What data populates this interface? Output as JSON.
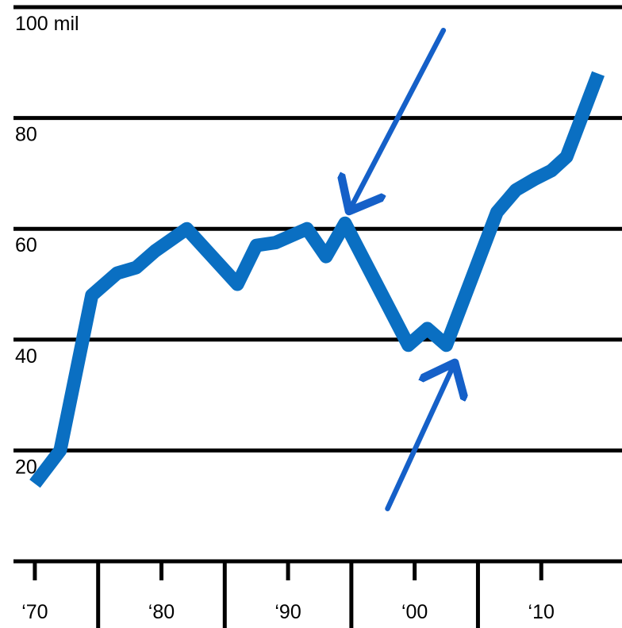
{
  "chart_data": {
    "type": "line",
    "title": "",
    "xlabel": "",
    "ylabel": "",
    "ylim": [
      0,
      100
    ],
    "xlim": [
      1968,
      2015.5
    ],
    "grid": true,
    "y_ticks": [
      {
        "value": 100,
        "label": "100 mil"
      },
      {
        "value": 80,
        "label": "80"
      },
      {
        "value": 60,
        "label": "60"
      },
      {
        "value": 40,
        "label": "40"
      },
      {
        "value": 20,
        "label": "20"
      }
    ],
    "x_ticks": [
      {
        "value": 1970,
        "label": "‘70"
      },
      {
        "value": 1980,
        "label": "‘80"
      },
      {
        "value": 1990,
        "label": "‘90"
      },
      {
        "value": 2000,
        "label": "‘00"
      },
      {
        "value": 2010,
        "label": "‘10"
      }
    ],
    "series": [
      {
        "color": "#0a6fc2",
        "x": [
          1970,
          1972,
          1974.5,
          1976.5,
          1978,
          1979.5,
          1982,
          1986,
          1987.5,
          1989,
          1991.5,
          1993,
          1994.5,
          1999.5,
          2001,
          2002.5,
          2006.5,
          2008,
          2009.5,
          2010.8,
          2012,
          2014.5
        ],
        "values": [
          14,
          20,
          48,
          52,
          53,
          56,
          60,
          50,
          57,
          57.5,
          60,
          55,
          61,
          39,
          42,
          39,
          63,
          67,
          69,
          70.5,
          73,
          88
        ]
      }
    ],
    "annotations": [
      {
        "type": "arrow",
        "color": "#1560c8",
        "direction": "down-left",
        "points_to": {
          "x": 1995,
          "y": 64
        }
      },
      {
        "type": "arrow",
        "color": "#1560c8",
        "direction": "up-right",
        "points_to": {
          "x": 2003,
          "y": 35
        }
      }
    ],
    "boundary_ticks": [
      1975,
      1985,
      1995,
      2005
    ]
  }
}
